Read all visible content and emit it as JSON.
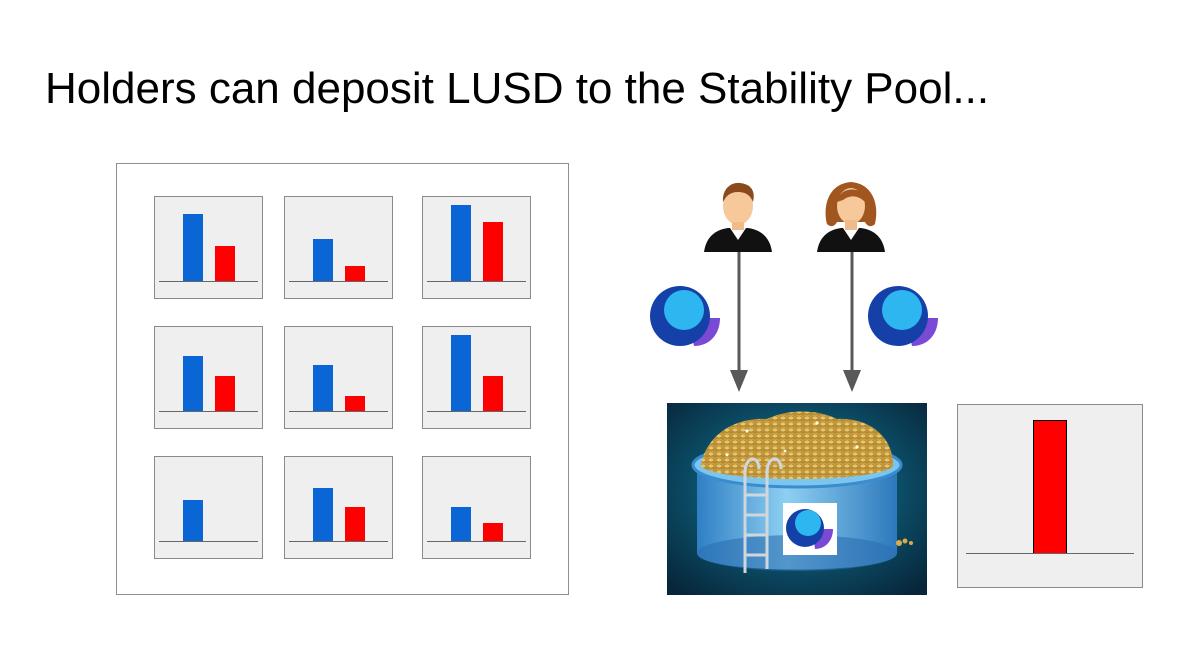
{
  "slide": {
    "title": "Holders can deposit LUSD to the Stability Pool..."
  },
  "colors": {
    "collateral": "#0a66d4",
    "debt": "#ff0000",
    "pool_background": "#0b3c52",
    "token_dark": "#1540a8",
    "token_light": "#2eb6f0",
    "token_accent": "#7a4ad6"
  },
  "troves": [
    {
      "collateral": 0.96,
      "debt": 0.5
    },
    {
      "collateral": 0.6,
      "debt": 0.22
    },
    {
      "collateral": 1.08,
      "debt": 0.84
    },
    {
      "collateral": 0.79,
      "debt": 0.5
    },
    {
      "collateral": 0.66,
      "debt": 0.22
    },
    {
      "collateral": 1.08,
      "debt": 0.5
    },
    {
      "collateral": 0.58,
      "debt": 0.0
    },
    {
      "collateral": 0.76,
      "debt": 0.48
    },
    {
      "collateral": 0.48,
      "debt": 0.26
    }
  ],
  "depositors": [
    {
      "icon": "male-user-icon"
    },
    {
      "icon": "female-user-icon"
    }
  ],
  "stability_pool": {
    "icon": "stability-pool-image",
    "balance": 1.0
  }
}
